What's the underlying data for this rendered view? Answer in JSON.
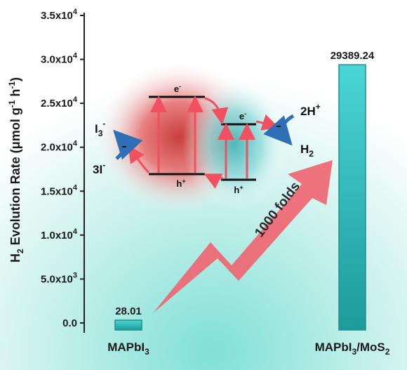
{
  "chart_data": {
    "type": "bar",
    "categories": [
      {
        "main": "MAPbI",
        "sub": "3",
        "tail": "",
        "sub2": ""
      },
      {
        "main": "MAPbI",
        "sub": "3",
        "tail": "/MoS",
        "sub2": "2"
      }
    ],
    "values": [
      28.01,
      29389.24
    ],
    "value_labels": [
      "28.01",
      "29389.24"
    ],
    "ylim": [
      0,
      35000
    ],
    "yticks": [
      {
        "value": 0,
        "label": "0.0",
        "exp": ""
      },
      {
        "value": 5000,
        "label": "5.0x10",
        "exp": "3"
      },
      {
        "value": 10000,
        "label": "1.0x10",
        "exp": "4"
      },
      {
        "value": 15000,
        "label": "1.5x10",
        "exp": "4"
      },
      {
        "value": 20000,
        "label": "2.0x10",
        "exp": "4"
      },
      {
        "value": 25000,
        "label": "2.5x10",
        "exp": "4"
      },
      {
        "value": 30000,
        "label": "3.0x10",
        "exp": "4"
      },
      {
        "value": 35000,
        "label": "3.5x10",
        "exp": "4"
      }
    ],
    "ylabel": {
      "h": "H",
      "h_sub": "2",
      "text": " Evolution Rate (μmol g",
      "e1": "-1",
      "mid": " h",
      "e2": "-1",
      "end": ")"
    },
    "grid": false,
    "colors": {
      "bar_fill": "#33c9c9",
      "bar_edge": "#1f8f8f",
      "arrow": "#f06470",
      "teal": "#3fc4c4",
      "red": "#e04545"
    }
  },
  "inset": {
    "electron": "e",
    "electron_sup": "-",
    "hole": "h",
    "hole_sup": "+",
    "i3": "I",
    "i3_sub": "3",
    "i3_sup": "-",
    "three_i": "3I",
    "three_i_sup": "-",
    "two_h": "2H",
    "two_h_sup": "+",
    "h2": "H",
    "h2_sub": "2"
  },
  "annotation": "1000 folds"
}
